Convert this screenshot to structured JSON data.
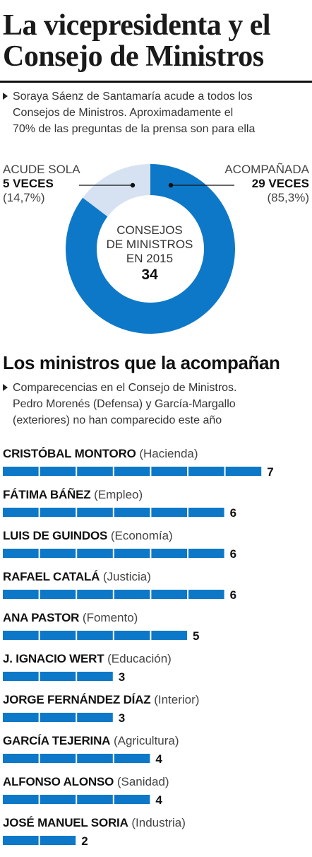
{
  "header": {
    "title_line1": "La vicepresidenta y el",
    "title_line2": "Consejo de Ministros",
    "subtitle_line1": "Soraya Sáenz de Santamaría acude a todos los",
    "subtitle_line2": "Consejos de Ministros. Aproximadamente el",
    "subtitle_line3": "70% de las preguntas de la prensa son para ella"
  },
  "donut": {
    "left_label": "ACUDE SOLA",
    "left_value": "5 VECES",
    "left_pct": "(14,7%)",
    "right_label": "ACOMPAÑADA",
    "right_value": "29 VECES",
    "right_pct": "(85,3%)",
    "center_line1": "CONSEJOS",
    "center_line2": "DE MINISTROS",
    "center_line3": "EN 2015",
    "center_total": "34"
  },
  "section": {
    "title": "Los ministros que la acompañan",
    "subtitle_line1": "Comparecencias en el Consejo de Ministros.",
    "subtitle_line2": "Pedro Morenés (Defensa) y García-Margallo",
    "subtitle_line3": "(exteriores) no han comparecido este año"
  },
  "colors": {
    "accent": "#0e78c8",
    "donut_light": "#d6e1f1",
    "text": "#1a1a1a"
  },
  "chart_data": [
    {
      "type": "pie",
      "categories": [
        "ACUDE SOLA",
        "ACOMPAÑADA"
      ],
      "values": [
        5,
        29
      ],
      "percent_labels": [
        "(14,7%)",
        "(85,3%)"
      ],
      "total": 34,
      "title": ""
    },
    {
      "type": "bar",
      "orientation": "horizontal",
      "title": "Los ministros que la acompañan",
      "categories": [
        "CRISTÓBAL MONTORO",
        "FÁTIMA BÁÑEZ",
        "LUIS DE GUINDOS",
        "RAFAEL CATALÁ",
        "ANA PASTOR",
        "J. IGNACIO WERT",
        "JORGE FERNÁNDEZ DÍAZ",
        "GARCÍA TEJERINA",
        "ALFONSO ALONSO",
        "JOSÉ MANUEL SORIA"
      ],
      "departments": [
        "(Hacienda)",
        "(Empleo)",
        "(Economía)",
        "(Justicia)",
        "(Fomento)",
        "(Educación)",
        "(Interior)",
        "(Agricultura)",
        "(Sanidad)",
        "(Industria)"
      ],
      "values": [
        7,
        6,
        6,
        6,
        5,
        3,
        3,
        4,
        4,
        2
      ],
      "xlim": [
        0,
        7
      ],
      "grid": false
    }
  ]
}
